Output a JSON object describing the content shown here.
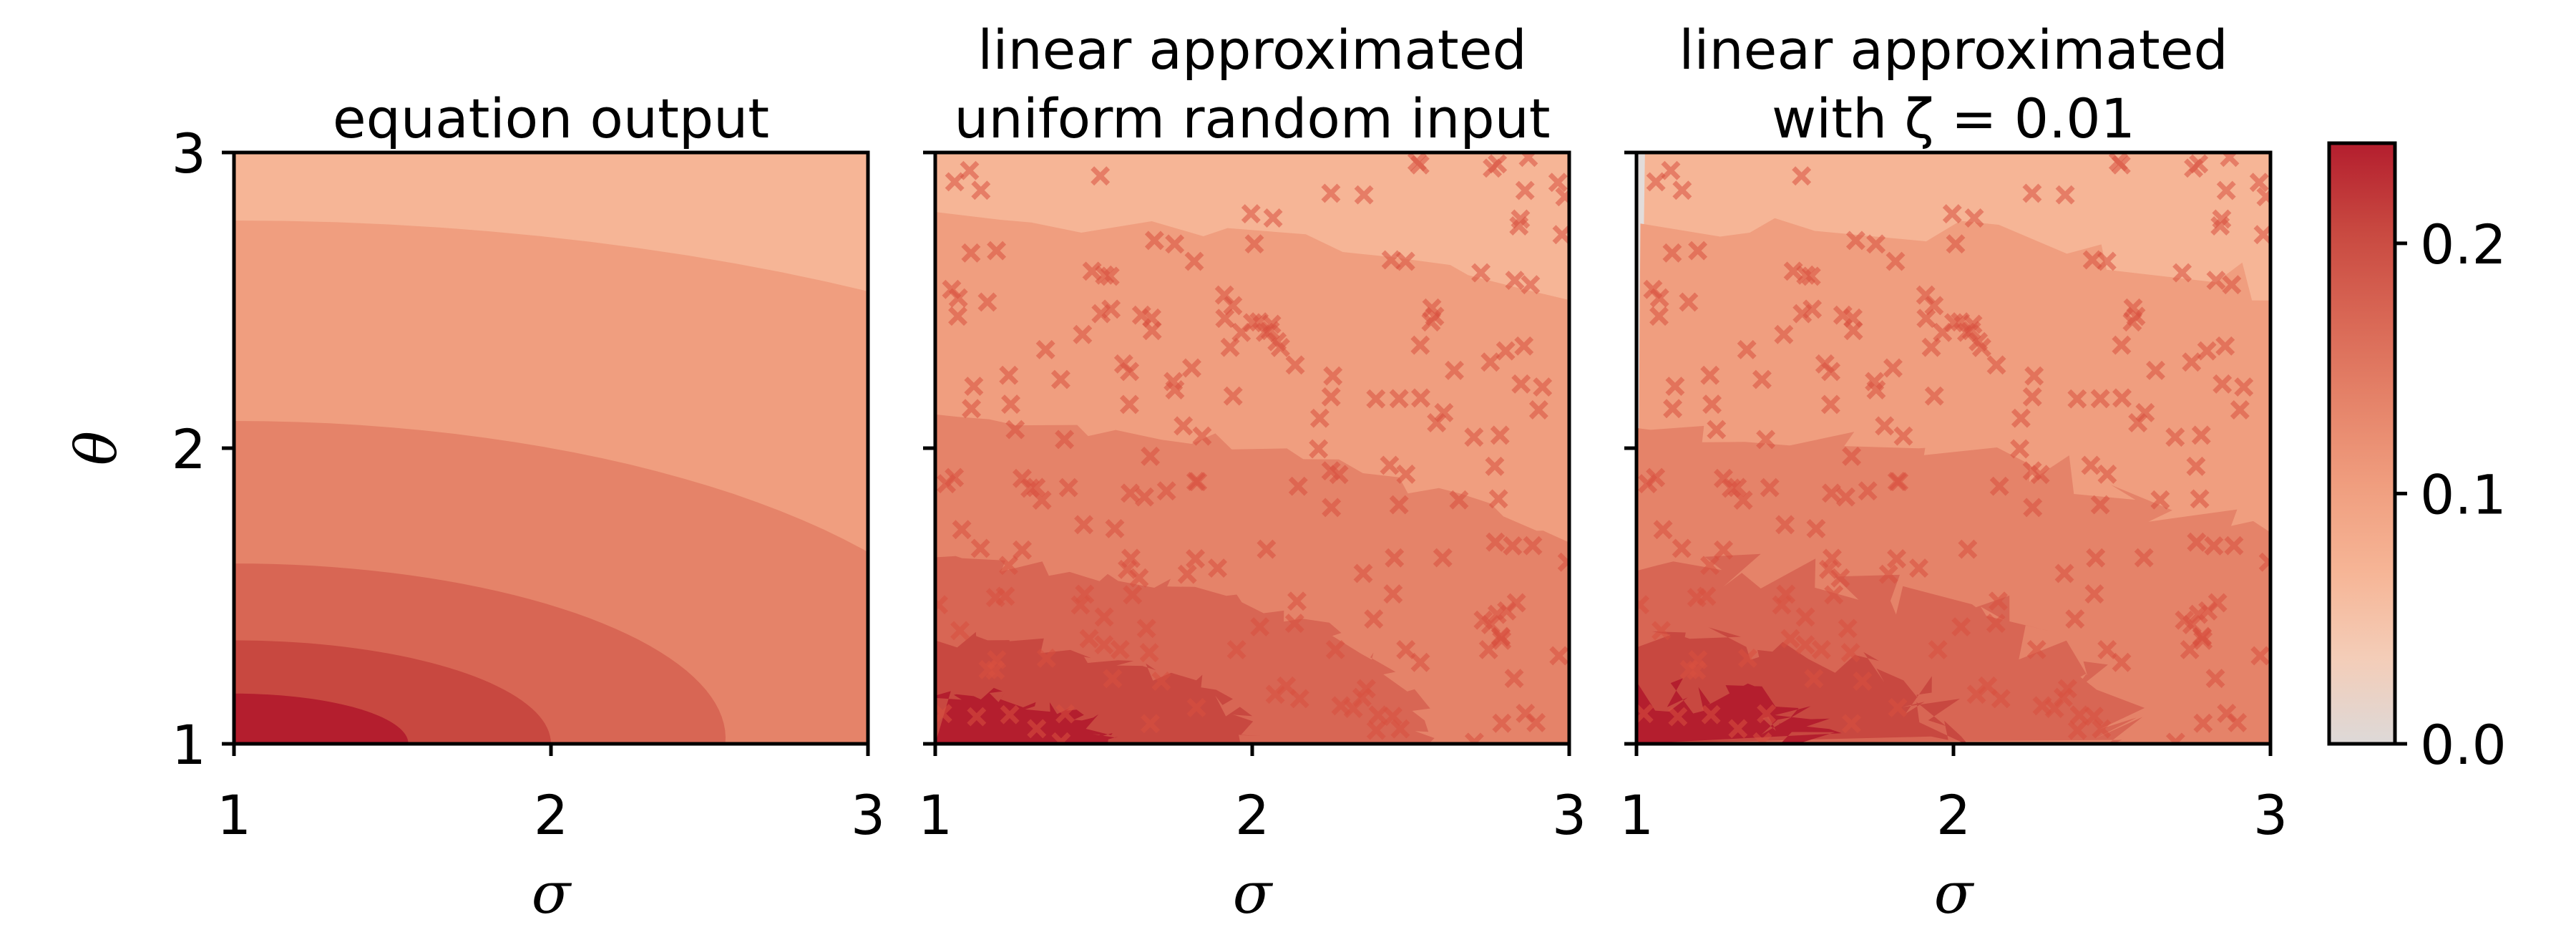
{
  "chart_data": [
    {
      "type": "contour",
      "title": "equation output",
      "xlabel": "σ",
      "ylabel": "θ",
      "xlim": [
        1,
        3
      ],
      "ylim": [
        1,
        3
      ],
      "xticks": [
        "1",
        "2",
        "3"
      ],
      "yticks": [
        "1",
        "2",
        "3"
      ],
      "field": "analytic",
      "markers": false
    },
    {
      "type": "contour",
      "title_lines": [
        "linear approximated",
        "uniform random input"
      ],
      "xlabel": "σ",
      "xlim": [
        1,
        3
      ],
      "ylim": [
        1,
        3
      ],
      "xticks": [
        "1",
        "2",
        "3"
      ],
      "field": "linear approximation from random samples",
      "markers": true,
      "marker_symbol": "x",
      "marker_count_approx": 200
    },
    {
      "type": "contour",
      "title_lines": [
        "linear approximated",
        "with ζ = 0.01"
      ],
      "xlabel": "σ",
      "xlim": [
        1,
        3
      ],
      "ylim": [
        1,
        3
      ],
      "xticks": [
        "1",
        "2",
        "3"
      ],
      "field": "linear approximation with ζ = 0.01",
      "markers": true,
      "marker_symbol": "x",
      "marker_count_approx": 200
    }
  ],
  "colorbar": {
    "range": [
      0.0,
      0.24
    ],
    "ticks": [
      "0.0",
      "0.1",
      "0.2"
    ],
    "tick_values": [
      0.0,
      0.1,
      0.2
    ],
    "colors": [
      "#ddd9d8",
      "#f4cdb8",
      "#f6b596",
      "#f09e7f",
      "#e58369",
      "#d86654",
      "#c84840",
      "#b41e2e"
    ]
  },
  "level_colors": [
    "#b41e2e",
    "#c84840",
    "#d86654",
    "#e58369",
    "#f09e7f",
    "#f6b596",
    "#f4cdb8",
    "#e2dcda"
  ],
  "marker_color": "#d9503f"
}
